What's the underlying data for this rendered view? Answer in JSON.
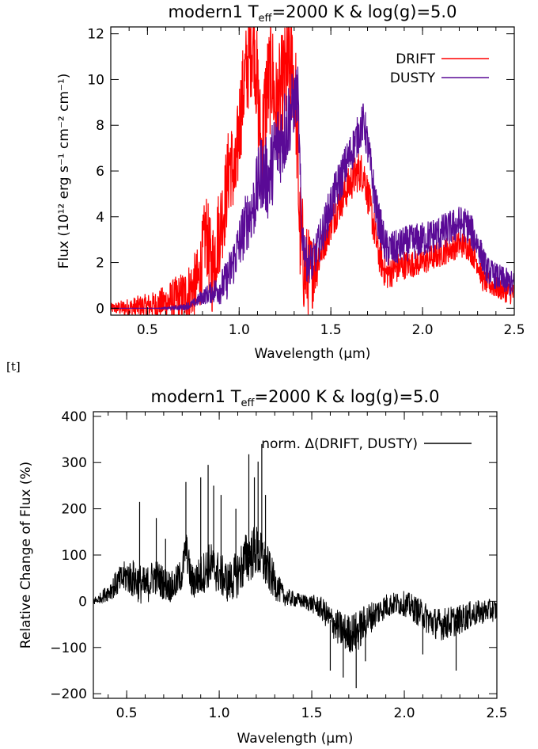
{
  "page_marker": "[t]",
  "chart_data": [
    {
      "type": "line",
      "title_base": "modern1 T",
      "title_sub": "eff",
      "title_rest": "=2000 K & log(g)=5.0",
      "xlabel": "Wavelength (μm)",
      "ylabel": "Flux (10¹² erg s⁻¹ cm⁻² cm⁻¹)",
      "xlim": [
        0.3,
        2.5
      ],
      "ylim": [
        -0.3,
        12.3
      ],
      "xticks": [
        0.5,
        1.0,
        1.5,
        2.0,
        2.5
      ],
      "xtick_labels": [
        "0.5",
        "1.0",
        "1.5",
        "2.0",
        "2.5"
      ],
      "yticks": [
        0,
        2,
        4,
        6,
        8,
        10,
        12
      ],
      "ytick_labels": [
        "0",
        "2",
        "4",
        "6",
        "8",
        "10",
        "12"
      ],
      "legend_position": "top-right",
      "colors": {
        "DRIFT": "#ff0000",
        "DUSTY": "#5a0a96"
      },
      "series": [
        {
          "name": "DRIFT",
          "points": [
            [
              0.3,
              0
            ],
            [
              0.4,
              0.02
            ],
            [
              0.5,
              0.1
            ],
            [
              0.6,
              0.25
            ],
            [
              0.7,
              0.5
            ],
            [
              0.78,
              1.2
            ],
            [
              0.82,
              3.4
            ],
            [
              0.85,
              1.6
            ],
            [
              0.88,
              3.0
            ],
            [
              0.92,
              4.5
            ],
            [
              0.95,
              6.5
            ],
            [
              0.98,
              5.5
            ],
            [
              1.0,
              8.0
            ],
            [
              1.03,
              10.0
            ],
            [
              1.06,
              11.2
            ],
            [
              1.08,
              12.0
            ],
            [
              1.1,
              9.5
            ],
            [
              1.12,
              6.8
            ],
            [
              1.15,
              9.5
            ],
            [
              1.18,
              10.3
            ],
            [
              1.2,
              8.5
            ],
            [
              1.23,
              9.5
            ],
            [
              1.26,
              10.2
            ],
            [
              1.29,
              10.6
            ],
            [
              1.31,
              9.0
            ],
            [
              1.33,
              3.5
            ],
            [
              1.36,
              1.6
            ],
            [
              1.4,
              1.6
            ],
            [
              1.45,
              2.6
            ],
            [
              1.5,
              3.7
            ],
            [
              1.55,
              4.6
            ],
            [
              1.6,
              5.4
            ],
            [
              1.65,
              6.0
            ],
            [
              1.68,
              5.9
            ],
            [
              1.72,
              4.2
            ],
            [
              1.76,
              2.4
            ],
            [
              1.8,
              1.5
            ],
            [
              1.85,
              1.7
            ],
            [
              1.9,
              1.9
            ],
            [
              2.0,
              2.0
            ],
            [
              2.1,
              2.4
            ],
            [
              2.2,
              2.8
            ],
            [
              2.25,
              2.7
            ],
            [
              2.3,
              2.0
            ],
            [
              2.33,
              1.2
            ],
            [
              2.4,
              0.9
            ],
            [
              2.5,
              0.6
            ]
          ],
          "band": [
            0.25,
            0.28,
            0.32,
            0.38,
            0.45,
            0.55,
            0.65,
            0.75,
            0.85,
            0.95,
            1.05,
            1.15,
            1.25,
            1.35,
            1.45,
            1.55,
            1.65,
            1.75,
            1.85,
            1.95,
            2.05,
            2.15,
            2.25,
            2.35,
            2.45
          ],
          "band_halfwidth": [
            0.2,
            0.2,
            0.25,
            0.4,
            0.5,
            0.6,
            1.0,
            1.4,
            2.0,
            2.0,
            2.2,
            2.5,
            2.5,
            2.4,
            0.8,
            0.8,
            0.9,
            0.8,
            0.7,
            0.6,
            0.6,
            0.6,
            0.6,
            0.5,
            0.5
          ]
        },
        {
          "name": "DUSTY",
          "points": [
            [
              0.3,
              0
            ],
            [
              0.5,
              0
            ],
            [
              0.6,
              0
            ],
            [
              0.7,
              0.05
            ],
            [
              0.75,
              0.2
            ],
            [
              0.8,
              0.5
            ],
            [
              0.85,
              0.7
            ],
            [
              0.9,
              0.9
            ],
            [
              0.93,
              1.2
            ],
            [
              0.96,
              1.8
            ],
            [
              1.0,
              2.8
            ],
            [
              1.04,
              3.8
            ],
            [
              1.08,
              4.5
            ],
            [
              1.12,
              6.0
            ],
            [
              1.16,
              5.6
            ],
            [
              1.2,
              7.0
            ],
            [
              1.24,
              7.6
            ],
            [
              1.27,
              8.3
            ],
            [
              1.3,
              9.0
            ],
            [
              1.32,
              9.4
            ],
            [
              1.34,
              3.5
            ],
            [
              1.37,
              2.0
            ],
            [
              1.4,
              2.0
            ],
            [
              1.45,
              3.2
            ],
            [
              1.5,
              4.5
            ],
            [
              1.55,
              5.6
            ],
            [
              1.6,
              6.6
            ],
            [
              1.65,
              7.6
            ],
            [
              1.68,
              8.2
            ],
            [
              1.71,
              6.6
            ],
            [
              1.75,
              4.2
            ],
            [
              1.8,
              2.6
            ],
            [
              1.85,
              2.6
            ],
            [
              1.9,
              2.8
            ],
            [
              2.0,
              3.0
            ],
            [
              2.1,
              3.3
            ],
            [
              2.2,
              3.7
            ],
            [
              2.25,
              3.6
            ],
            [
              2.3,
              2.8
            ],
            [
              2.35,
              1.7
            ],
            [
              2.4,
              1.4
            ],
            [
              2.5,
              1.0
            ]
          ],
          "band": [
            0.25,
            0.35,
            0.45,
            0.55,
            0.65,
            0.75,
            0.85,
            0.95,
            1.05,
            1.15,
            1.25,
            1.35,
            1.45,
            1.55,
            1.65,
            1.75,
            1.85,
            1.95,
            2.05,
            2.15,
            2.25,
            2.35,
            2.45
          ],
          "band_halfwidth": [
            0,
            0,
            0,
            0,
            0.1,
            0.2,
            0.5,
            1.0,
            1.4,
            1.8,
            2.0,
            0.9,
            0.9,
            1.0,
            0.9,
            0.9,
            0.8,
            0.8,
            0.8,
            0.8,
            0.8,
            0.6,
            0.6
          ]
        }
      ]
    },
    {
      "type": "line",
      "title_base": "modern1 T",
      "title_sub": "eff",
      "title_rest": "=2000 K & log(g)=5.0",
      "xlabel": "Wavelength (μm)",
      "ylabel": "Relative Change of Flux (%)",
      "xlim": [
        0.32,
        2.5
      ],
      "ylim": [
        -210,
        410
      ],
      "xticks": [
        0.5,
        1.0,
        1.5,
        2.0,
        2.5
      ],
      "xtick_labels": [
        "0.5",
        "1.0",
        "1.5",
        "2.0",
        "2.5"
      ],
      "yticks": [
        -200,
        -100,
        0,
        100,
        200,
        300,
        400
      ],
      "ytick_labels": [
        "−200",
        "−100",
        "0",
        "100",
        "200",
        "300",
        "400"
      ],
      "legend_position": "top-right",
      "colors": {
        "norm. Δ(DRIFT, DUSTY)": "#000000"
      },
      "series": [
        {
          "name": "norm. Δ(DRIFT, DUSTY)",
          "points": [
            [
              0.32,
              0
            ],
            [
              0.35,
              5
            ],
            [
              0.4,
              20
            ],
            [
              0.45,
              40
            ],
            [
              0.5,
              55
            ],
            [
              0.55,
              45
            ],
            [
              0.6,
              30
            ],
            [
              0.65,
              55
            ],
            [
              0.7,
              40
            ],
            [
              0.75,
              30
            ],
            [
              0.8,
              60
            ],
            [
              0.82,
              120
            ],
            [
              0.85,
              40
            ],
            [
              0.9,
              55
            ],
            [
              0.95,
              80
            ],
            [
              1.0,
              60
            ],
            [
              1.05,
              40
            ],
            [
              1.1,
              60
            ],
            [
              1.15,
              95
            ],
            [
              1.2,
              110
            ],
            [
              1.25,
              80
            ],
            [
              1.3,
              40
            ],
            [
              1.35,
              10
            ],
            [
              1.4,
              5
            ],
            [
              1.45,
              0
            ],
            [
              1.5,
              -5
            ],
            [
              1.55,
              -15
            ],
            [
              1.6,
              -40
            ],
            [
              1.65,
              -60
            ],
            [
              1.7,
              -70
            ],
            [
              1.75,
              -65
            ],
            [
              1.8,
              -40
            ],
            [
              1.85,
              -25
            ],
            [
              1.9,
              -10
            ],
            [
              1.95,
              -5
            ],
            [
              2.0,
              -5
            ],
            [
              2.05,
              -15
            ],
            [
              2.1,
              -30
            ],
            [
              2.15,
              -45
            ],
            [
              2.2,
              -50
            ],
            [
              2.25,
              -45
            ],
            [
              2.3,
              -40
            ],
            [
              2.35,
              -30
            ],
            [
              2.4,
              -25
            ],
            [
              2.45,
              -20
            ],
            [
              2.5,
              -20
            ]
          ],
          "spikes": [
            [
              0.57,
              215
            ],
            [
              0.66,
              180
            ],
            [
              0.71,
              135
            ],
            [
              0.82,
              258
            ],
            [
              0.9,
              268
            ],
            [
              0.94,
              295
            ],
            [
              0.97,
              250
            ],
            [
              1.01,
              230
            ],
            [
              1.09,
              200
            ],
            [
              1.16,
              318
            ],
            [
              1.19,
              268
            ],
            [
              1.21,
              302
            ],
            [
              1.23,
              340
            ],
            [
              1.25,
              230
            ],
            [
              1.6,
              -150
            ],
            [
              1.67,
              -165
            ],
            [
              1.74,
              -188
            ],
            [
              1.79,
              -130
            ],
            [
              2.1,
              -115
            ],
            [
              2.28,
              -150
            ]
          ],
          "band": [
            0.35,
            0.45,
            0.55,
            0.65,
            0.75,
            0.85,
            0.95,
            1.05,
            1.15,
            1.25,
            1.35,
            1.45,
            1.55,
            1.65,
            1.75,
            1.85,
            1.95,
            2.05,
            2.15,
            2.25,
            2.35,
            2.45
          ],
          "band_halfwidth": [
            10,
            30,
            45,
            40,
            35,
            40,
            50,
            45,
            60,
            55,
            20,
            15,
            25,
            40,
            45,
            30,
            25,
            30,
            35,
            35,
            30,
            25
          ]
        }
      ]
    }
  ]
}
